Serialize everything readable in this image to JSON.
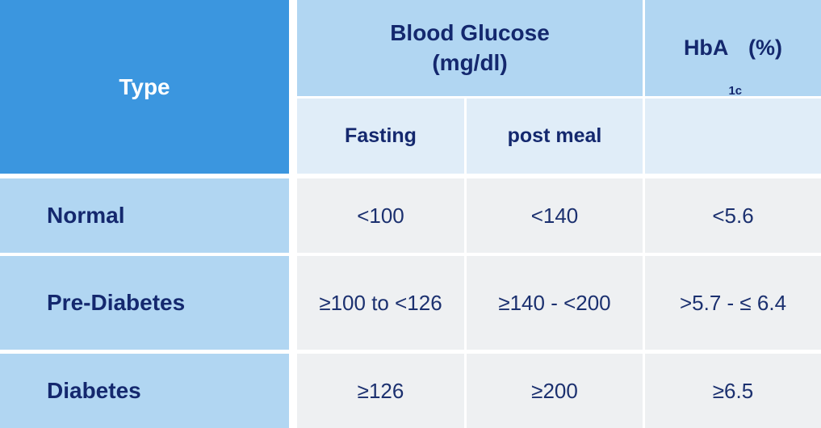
{
  "colors": {
    "header-blue": "#3b96df",
    "light-blue": "#b1d6f2",
    "pale-blue": "#e0edf8",
    "cell-gray": "#eef0f2",
    "navy": "#14286e",
    "value-navy": "#1b306f",
    "gap-white": "#ffffff"
  },
  "table": {
    "header": {
      "type": "Type",
      "blood_glucose_line1": "Blood Glucose",
      "blood_glucose_line2": "(mg/dl)",
      "hba1c_prefix": "HbA",
      "hba1c_sub": "1c",
      "hba1c_suffix": "(%)",
      "fasting": "Fasting",
      "post_meal": "post meal"
    },
    "rows": [
      {
        "label": "Normal",
        "fasting": "<100",
        "post_meal": "<140",
        "hba1c": "<5.6"
      },
      {
        "label": "Pre-Diabetes",
        "fasting": "≥100 to <126",
        "post_meal": "≥140 - <200",
        "hba1c": ">5.7 - ≤ 6.4"
      },
      {
        "label": "Diabetes",
        "fasting": "≥126",
        "post_meal": "≥200",
        "hba1c": "≥6.5"
      }
    ]
  },
  "chart_data": {
    "type": "table",
    "title": "Blood glucose and HbA1c diagnostic ranges",
    "columns": [
      "Type",
      "Blood Glucose (mg/dl) — Fasting",
      "Blood Glucose (mg/dl) — post meal",
      "HbA1c (%)"
    ],
    "rows": [
      [
        "Normal",
        "<100",
        "<140",
        "<5.6"
      ],
      [
        "Pre-Diabetes",
        "≥100 to <126",
        "≥140 - <200",
        ">5.7 - ≤ 6.4"
      ],
      [
        "Diabetes",
        "≥126",
        "≥200",
        "≥6.5"
      ]
    ]
  }
}
